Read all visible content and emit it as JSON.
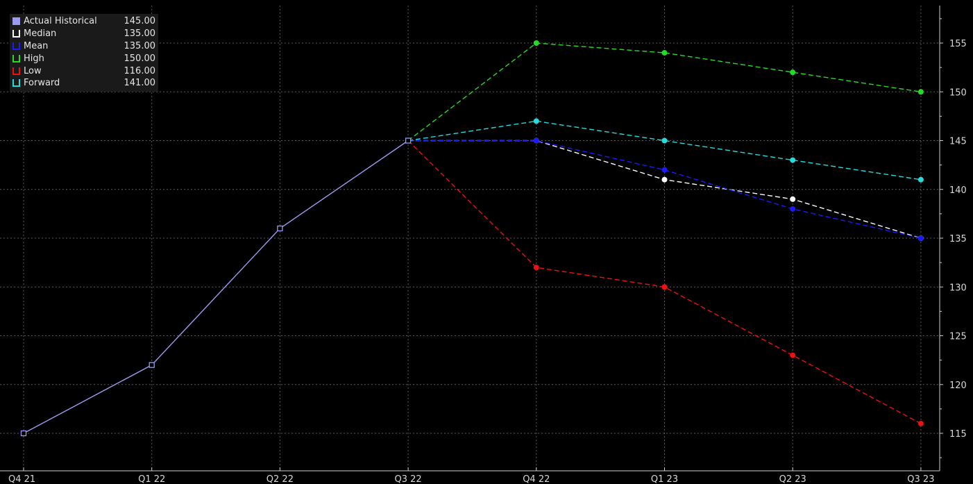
{
  "chart_data": {
    "type": "line",
    "categories": [
      "Q4 21",
      "Q1 22",
      "Q2 22",
      "Q3 22",
      "Q4 22",
      "Q1 23",
      "Q2 23",
      "Q3 23"
    ],
    "y_ticks": [
      115,
      120,
      125,
      130,
      135,
      140,
      145,
      150,
      155
    ],
    "ylim": [
      111,
      158
    ],
    "grid": true,
    "legend_position": "top-left",
    "series": [
      {
        "name": "Actual Historical",
        "legend_value": "145.00",
        "color": "#9a9aee",
        "style": "solid",
        "marker": "hollow-square",
        "values": [
          115,
          122,
          136,
          145,
          null,
          null,
          null,
          null
        ]
      },
      {
        "name": "Median",
        "legend_value": "135.00",
        "color": "#ffffff",
        "style": "dashed",
        "marker": "dot",
        "values": [
          null,
          null,
          null,
          145,
          145,
          141,
          139,
          135
        ]
      },
      {
        "name": "Mean",
        "legend_value": "135.00",
        "color": "#1a1aff",
        "style": "dashed",
        "marker": "dot",
        "values": [
          null,
          null,
          null,
          145,
          145,
          142,
          138,
          135
        ]
      },
      {
        "name": "High",
        "legend_value": "150.00",
        "color": "#22dd22",
        "style": "dashed",
        "marker": "dot",
        "values": [
          null,
          null,
          null,
          145,
          155,
          154,
          152,
          150
        ]
      },
      {
        "name": "Low",
        "legend_value": "116.00",
        "color": "#ee1111",
        "style": "dashed",
        "marker": "dot",
        "values": [
          null,
          null,
          null,
          145,
          132,
          130,
          123,
          116
        ]
      },
      {
        "name": "Forward",
        "legend_value": "141.00",
        "color": "#22dddd",
        "style": "dashed",
        "marker": "dot",
        "values": [
          null,
          null,
          null,
          145,
          147,
          145,
          143,
          141
        ]
      }
    ]
  }
}
